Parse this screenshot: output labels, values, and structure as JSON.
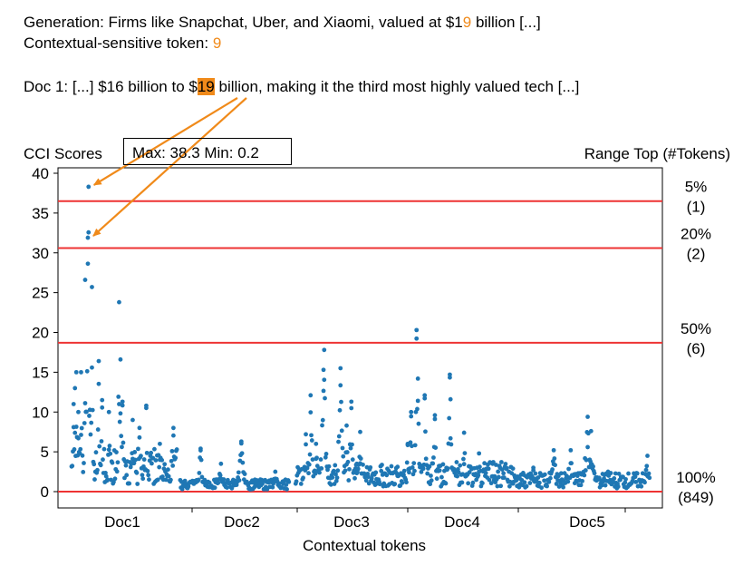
{
  "header": {
    "generation_label": "Generation: Firms like Snapchat, Uber, and Xiaomi, valued at $1",
    "generation_highlight": "9",
    "generation_suffix": " billion [...]",
    "ctx_label": "Contextual-sensitive token: ",
    "ctx_token": "9",
    "doc_prefix": "Doc 1: [...] $16 billion to $",
    "doc_token": "19",
    "doc_suffix": " billion, making it the third most highly valued tech [...]"
  },
  "colors": {
    "highlight": "#f08a1a",
    "points": "#1f77b4",
    "threshold": "#ee3333",
    "arrow": "#f08a1a"
  },
  "chart_data": {
    "type": "scatter",
    "ylabel_left": "CCI Scores",
    "stats_box": "Max: 38.3  Min: 0.2",
    "right_header": "Range Top (#Tokens)",
    "xlabel": "Contextual tokens",
    "ylim": [
      -0.5,
      40
    ],
    "yticks": [
      "0",
      "5",
      "10",
      "15",
      "20",
      "25",
      "30",
      "35",
      "40"
    ],
    "categories": [
      "Doc1",
      "Doc2",
      "Doc3",
      "Doc4",
      "Doc5"
    ],
    "thresholds": [
      {
        "y": 36.5,
        "pct": "5%",
        "count": "(1)"
      },
      {
        "y": 30.6,
        "pct": "20%",
        "count": "(2)"
      },
      {
        "y": 18.7,
        "pct": "50%",
        "count": "(6)"
      },
      {
        "y": 0.0,
        "pct": "100%",
        "count": "(849)"
      }
    ],
    "highlighted_points": [
      {
        "x": 25,
        "y": 38.3
      },
      {
        "x": 24,
        "y": 31.9
      }
    ],
    "doc_ranges": [
      {
        "name": "Doc1",
        "start": 0,
        "end": 155,
        "spikes": [
          [
            3,
            11
          ],
          [
            5,
            13
          ],
          [
            7,
            15
          ],
          [
            10,
            10
          ],
          [
            14,
            15
          ],
          [
            24,
            31.9
          ],
          [
            25,
            38.3
          ],
          [
            20,
            26.6
          ],
          [
            30,
            25.7
          ],
          [
            40,
            16.4
          ],
          [
            45,
            11.5
          ],
          [
            55,
            10
          ],
          [
            70,
            23.8
          ],
          [
            72,
            16.6
          ],
          [
            75,
            11.3
          ],
          [
            90,
            9
          ],
          [
            100,
            8
          ],
          [
            110,
            10.8
          ],
          [
            130,
            6
          ],
          [
            150,
            8
          ]
        ],
        "base": 3.2,
        "decay": 0.55
      },
      {
        "name": "Doc2",
        "start": 160,
        "end": 320,
        "spikes": [
          [
            190,
            5.4
          ],
          [
            220,
            3.5
          ],
          [
            250,
            6.3
          ],
          [
            300,
            2.5
          ]
        ],
        "base": 0.9,
        "decay": 0.2
      },
      {
        "name": "Doc3",
        "start": 330,
        "end": 480,
        "spikes": [
          [
            345,
            7.2
          ],
          [
            352,
            12.1
          ],
          [
            360,
            6
          ],
          [
            371,
            15.3
          ],
          [
            372,
            17.8
          ],
          [
            396,
            15.5
          ],
          [
            405,
            8.3
          ],
          [
            412,
            11.3
          ],
          [
            425,
            7.5
          ],
          [
            420,
            3.5
          ]
        ],
        "base": 2.0,
        "decay": 0.3
      },
      {
        "name": "Doc4",
        "start": 480,
        "end": 650,
        "spikes": [
          [
            495,
            6
          ],
          [
            500,
            10
          ],
          [
            508,
            20.3
          ],
          [
            510,
            14.2
          ],
          [
            520,
            12.1
          ],
          [
            535,
            9.6
          ],
          [
            557,
            14.7
          ],
          [
            558,
            11.6
          ],
          [
            578,
            7.4
          ],
          [
            600,
            4.8
          ],
          [
            620,
            3.5
          ]
        ],
        "base": 2.2,
        "decay": 0.4
      },
      {
        "name": "Doc5",
        "start": 650,
        "end": 851,
        "spikes": [
          [
            680,
            3
          ],
          [
            710,
            5.2
          ],
          [
            735,
            5.2
          ],
          [
            760,
            9.4
          ],
          [
            765,
            7.6
          ],
          [
            790,
            2.5
          ],
          [
            848,
            4.5
          ]
        ],
        "base": 1.4,
        "decay": 0.2
      }
    ]
  }
}
